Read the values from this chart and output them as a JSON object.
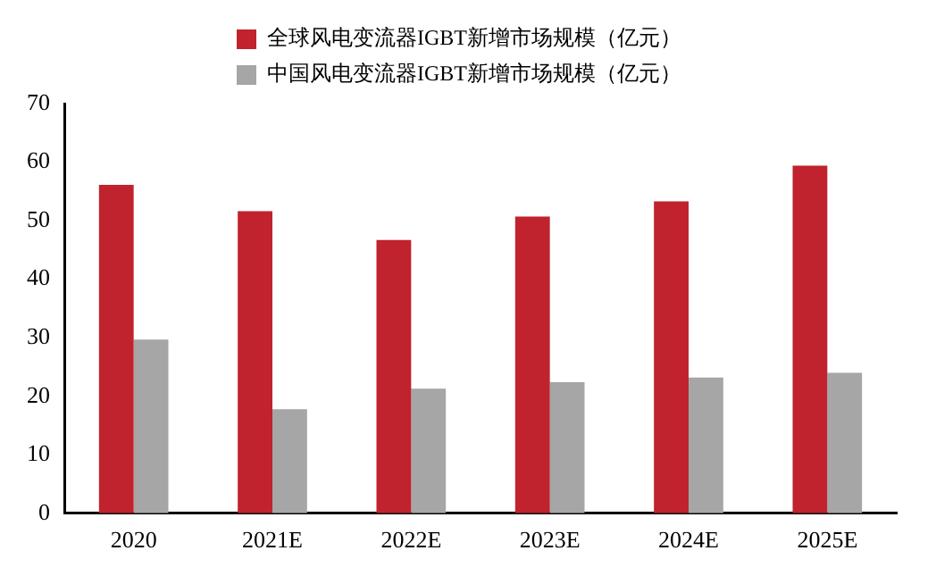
{
  "chart_data": {
    "type": "bar",
    "categories": [
      "2020",
      "2021E",
      "2022E",
      "2023E",
      "2024E",
      "2025E"
    ],
    "series": [
      {
        "name": "全球风电变流器IGBT新增市场规模（亿元）",
        "color": "#c0232d",
        "values": [
          56.1,
          51.6,
          46.7,
          50.7,
          53.3,
          59.4
        ]
      },
      {
        "name": "中国风电变流器IGBT新增市场规模（亿元）",
        "color": "#a6a6a6",
        "values": [
          29.7,
          17.8,
          21.3,
          22.4,
          23.2,
          24.0
        ]
      }
    ],
    "ylim": [
      0,
      70
    ],
    "yticks": [
      0,
      10,
      20,
      30,
      40,
      50,
      60,
      70
    ],
    "grid": false,
    "legend": "top"
  }
}
